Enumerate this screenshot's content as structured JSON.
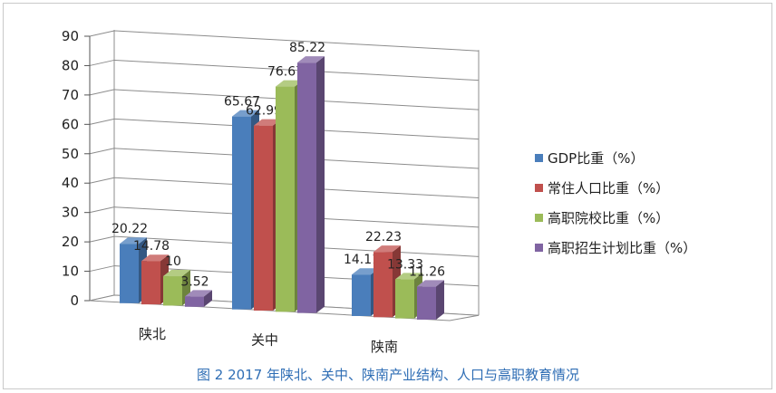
{
  "caption": "图 2 2017 年陕北、关中、陕南产业结构、人口与高职教育情况",
  "chart_data": {
    "type": "bar",
    "style": "3d-clustered-column",
    "categories": [
      "陕北",
      "关中",
      "陕南"
    ],
    "series": [
      {
        "name": "GDP比重（%）",
        "values": [
          20.22,
          65.67,
          14.11
        ],
        "labels": [
          "20.22",
          "65.67",
          "14.11"
        ],
        "color": "#4a7ebb"
      },
      {
        "name": "常住人口比重（%）",
        "values": [
          14.78,
          62.99,
          22.23
        ],
        "labels": [
          "14.78",
          "62.99",
          "22.23"
        ],
        "color": "#c0504d"
      },
      {
        "name": "高职院校比重（%）",
        "values": [
          10,
          76.67,
          13.33
        ],
        "labels": [
          "10",
          "76.67",
          "13.33"
        ],
        "color": "#9bbb59"
      },
      {
        "name": "高职招生计划比重（%）",
        "values": [
          3.52,
          85.22,
          11.26
        ],
        "labels": [
          "3.52",
          "85.22",
          "11.26"
        ],
        "color": "#8064a2"
      }
    ],
    "yticks": [
      "0",
      "10",
      "20",
      "30",
      "40",
      "50",
      "60",
      "70",
      "80",
      "90"
    ],
    "ylim": [
      0,
      90
    ],
    "grid": true,
    "legend": "right"
  }
}
